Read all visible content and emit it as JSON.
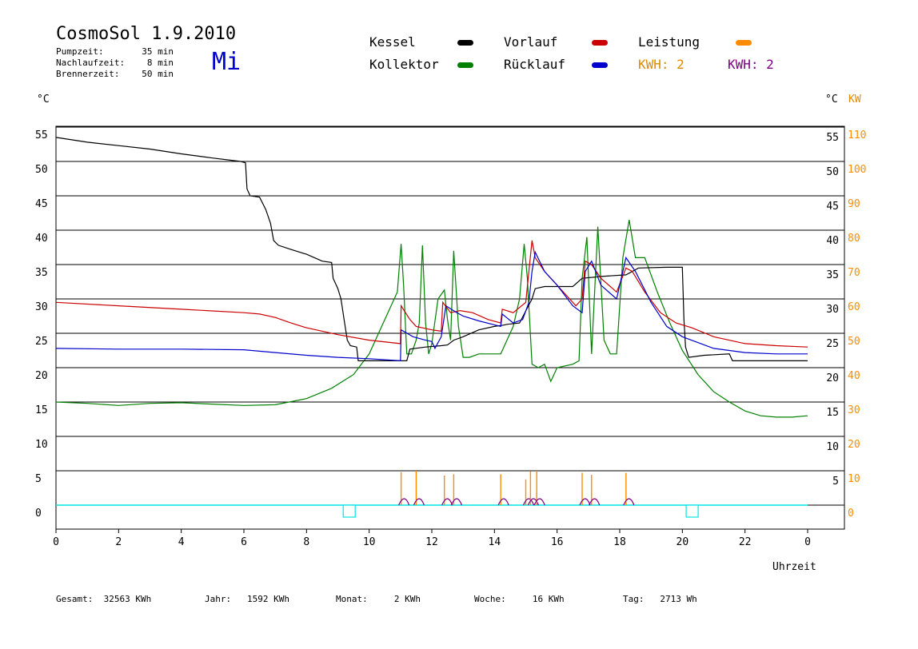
{
  "header": {
    "title": "CosmoSol 1.9.2010",
    "day": "Mi",
    "info": [
      {
        "label": "Pumpzeit:",
        "value": "35 min"
      },
      {
        "label": "Nachlaufzeit:",
        "value": "8 min"
      },
      {
        "label": "Brennerzeit:",
        "value": "50 min"
      }
    ]
  },
  "legend": {
    "kessel": "Kessel",
    "kollektor": "Kollektor",
    "vorlauf": "Vorlauf",
    "ruecklauf": "Rücklauf",
    "leistung": "Leistung",
    "kwh1": "KWH: 2",
    "kwh2": "KWH: 2"
  },
  "colors": {
    "kessel": "#000000",
    "kollektor": "#008000",
    "vorlauf": "#cc0000",
    "ruecklauf": "#0000cc",
    "leistung": "#ff8c00",
    "kwh1": "#e08a00",
    "kwh2": "#800080",
    "baseline": "#00e5e5"
  },
  "footer": [
    {
      "label": "Gesamt:",
      "value": "32563 KWh"
    },
    {
      "label": "Jahr:",
      "value": "1592 KWh"
    },
    {
      "label": "Monat:",
      "value": "2 KWh"
    },
    {
      "label": "Woche:",
      "value": "16 KWh"
    },
    {
      "label": "Tag:",
      "value": "2713 Wh"
    }
  ],
  "chart_data": {
    "type": "line",
    "left_unit": "°C",
    "right_unit": "°C",
    "right_unit2": "KW",
    "xlabel": "Uhrzeit",
    "xlim": [
      0,
      24
    ],
    "ylim": [
      -2.5,
      55
    ],
    "grid": true,
    "x_ticks": [
      "0",
      "2",
      "4",
      "6",
      "8",
      "10",
      "12",
      "14",
      "16",
      "18",
      "20",
      "22",
      "0"
    ],
    "y_ticks": [
      0,
      5,
      10,
      15,
      20,
      25,
      30,
      35,
      40,
      45,
      50,
      55
    ],
    "y_ticks_right": [
      "",
      "5",
      "10",
      "15",
      "20",
      "25",
      "30",
      "35",
      "40",
      "45",
      "50",
      "55"
    ],
    "kw_ticks": [
      "0",
      "10",
      "20",
      "30",
      "40",
      "50",
      "60",
      "70",
      "80",
      "90",
      "100",
      "110"
    ],
    "series": [
      {
        "name": "Kessel",
        "color": "#000000",
        "points": [
          [
            0,
            53.5
          ],
          [
            1,
            52.8
          ],
          [
            2,
            52.3
          ],
          [
            3,
            51.8
          ],
          [
            4,
            51.1
          ],
          [
            5,
            50.5
          ],
          [
            5.9,
            50
          ],
          [
            6.05,
            49.8
          ],
          [
            6.1,
            46
          ],
          [
            6.2,
            45
          ],
          [
            6.5,
            44.8
          ],
          [
            6.7,
            43
          ],
          [
            6.85,
            41
          ],
          [
            6.95,
            38.5
          ],
          [
            7.1,
            37.8
          ],
          [
            7.5,
            37.2
          ],
          [
            8,
            36.5
          ],
          [
            8.5,
            35.5
          ],
          [
            8.8,
            35.3
          ],
          [
            8.85,
            33
          ],
          [
            9,
            31.5
          ],
          [
            9.1,
            30
          ],
          [
            9.2,
            27
          ],
          [
            9.3,
            24
          ],
          [
            9.4,
            23.2
          ],
          [
            9.6,
            23
          ],
          [
            9.65,
            21
          ],
          [
            10,
            21
          ],
          [
            10.5,
            21
          ],
          [
            11.2,
            21
          ],
          [
            11.3,
            22.7
          ],
          [
            11.8,
            23
          ],
          [
            12.3,
            23.2
          ],
          [
            12.5,
            23.3
          ],
          [
            12.7,
            24
          ],
          [
            13,
            24.5
          ],
          [
            13.5,
            25.5
          ],
          [
            14,
            26
          ],
          [
            14.3,
            26.2
          ],
          [
            14.4,
            26.3
          ],
          [
            14.8,
            26.5
          ],
          [
            15.2,
            30
          ],
          [
            15.3,
            31.5
          ],
          [
            15.6,
            31.8
          ],
          [
            16.5,
            31.8
          ],
          [
            16.8,
            33
          ],
          [
            17.5,
            33.3
          ],
          [
            18.2,
            33.5
          ],
          [
            18.6,
            34.5
          ],
          [
            19.5,
            34.6
          ],
          [
            20,
            34.6
          ],
          [
            20.05,
            27
          ],
          [
            20.1,
            23
          ],
          [
            20.2,
            21.5
          ],
          [
            20.7,
            21.8
          ],
          [
            21.5,
            22
          ],
          [
            21.6,
            21
          ],
          [
            22,
            21
          ],
          [
            24,
            21
          ]
        ]
      },
      {
        "name": "Vorlauf",
        "color": "#cc0000",
        "points": [
          [
            0,
            29.5
          ],
          [
            2,
            29
          ],
          [
            4,
            28.5
          ],
          [
            6,
            28
          ],
          [
            6.5,
            27.8
          ],
          [
            7,
            27.3
          ],
          [
            7.5,
            26.5
          ],
          [
            8,
            25.8
          ],
          [
            9,
            24.8
          ],
          [
            10,
            24
          ],
          [
            11,
            23.5
          ],
          [
            11.02,
            29
          ],
          [
            11.3,
            27
          ],
          [
            11.5,
            26
          ],
          [
            12,
            25.5
          ],
          [
            12.3,
            25.3
          ],
          [
            12.35,
            29.5
          ],
          [
            12.6,
            28
          ],
          [
            12.9,
            28.3
          ],
          [
            13.3,
            28
          ],
          [
            13.8,
            27
          ],
          [
            14.2,
            26.5
          ],
          [
            14.25,
            28.5
          ],
          [
            14.6,
            28
          ],
          [
            15,
            29.5
          ],
          [
            15.1,
            34
          ],
          [
            15.2,
            38.5
          ],
          [
            15.3,
            36
          ],
          [
            15.6,
            34
          ],
          [
            16.2,
            31
          ],
          [
            16.6,
            29
          ],
          [
            16.8,
            30
          ],
          [
            16.9,
            35.5
          ],
          [
            17.1,
            35
          ],
          [
            17.4,
            33
          ],
          [
            17.9,
            31
          ],
          [
            18.2,
            34.5
          ],
          [
            18.4,
            34
          ],
          [
            18.8,
            31
          ],
          [
            19.3,
            28
          ],
          [
            19.8,
            26.5
          ],
          [
            20.3,
            25.8
          ],
          [
            21,
            24.5
          ],
          [
            22,
            23.5
          ],
          [
            23,
            23.2
          ],
          [
            24,
            23
          ]
        ]
      },
      {
        "name": "Rücklauf",
        "color": "#0000cc",
        "points": [
          [
            0,
            22.8
          ],
          [
            2,
            22.7
          ],
          [
            4,
            22.7
          ],
          [
            6,
            22.6
          ],
          [
            7,
            22.2
          ],
          [
            8,
            21.8
          ],
          [
            9,
            21.5
          ],
          [
            10,
            21.3
          ],
          [
            11,
            21
          ],
          [
            11.02,
            25.5
          ],
          [
            11.4,
            24.5
          ],
          [
            11.8,
            24
          ],
          [
            12,
            23.8
          ],
          [
            12.1,
            22.8
          ],
          [
            12.3,
            24.5
          ],
          [
            12.45,
            29
          ],
          [
            12.8,
            28
          ],
          [
            13,
            27.5
          ],
          [
            13.5,
            26.8
          ],
          [
            14.2,
            26
          ],
          [
            14.25,
            27.8
          ],
          [
            14.6,
            26.5
          ],
          [
            14.9,
            27
          ],
          [
            15.1,
            29.5
          ],
          [
            15.2,
            34
          ],
          [
            15.3,
            36.8
          ],
          [
            15.6,
            34
          ],
          [
            16,
            32
          ],
          [
            16.5,
            29
          ],
          [
            16.8,
            28
          ],
          [
            16.9,
            34
          ],
          [
            17.1,
            35.5
          ],
          [
            17.4,
            32
          ],
          [
            17.9,
            30
          ],
          [
            18.2,
            36
          ],
          [
            18.5,
            34
          ],
          [
            19,
            29.5
          ],
          [
            19.5,
            26
          ],
          [
            20,
            24.5
          ],
          [
            21,
            22.8
          ],
          [
            22,
            22.2
          ],
          [
            23,
            22
          ],
          [
            24,
            22
          ]
        ]
      },
      {
        "name": "Kollektor",
        "color": "#008000",
        "points": [
          [
            0,
            15
          ],
          [
            1,
            14.8
          ],
          [
            2,
            14.5
          ],
          [
            3,
            14.8
          ],
          [
            4,
            14.9
          ],
          [
            5,
            14.7
          ],
          [
            6,
            14.5
          ],
          [
            7,
            14.6
          ],
          [
            8,
            15.5
          ],
          [
            8.8,
            17
          ],
          [
            9.5,
            19
          ],
          [
            10,
            22
          ],
          [
            10.4,
            26
          ],
          [
            10.9,
            31
          ],
          [
            11.02,
            38
          ],
          [
            11.1,
            32
          ],
          [
            11.2,
            22
          ],
          [
            11.35,
            22
          ],
          [
            11.5,
            24
          ],
          [
            11.6,
            26.5
          ],
          [
            11.7,
            37.8
          ],
          [
            11.8,
            26.5
          ],
          [
            11.9,
            22
          ],
          [
            12,
            23.5
          ],
          [
            12.2,
            30
          ],
          [
            12.4,
            31.3
          ],
          [
            12.5,
            27
          ],
          [
            12.6,
            24
          ],
          [
            12.7,
            37
          ],
          [
            12.85,
            26
          ],
          [
            13,
            21.5
          ],
          [
            13.2,
            21.5
          ],
          [
            13.5,
            22
          ],
          [
            14.2,
            22
          ],
          [
            14.6,
            26
          ],
          [
            14.8,
            30
          ],
          [
            14.95,
            38
          ],
          [
            15.05,
            33
          ],
          [
            15.2,
            20.5
          ],
          [
            15.4,
            20
          ],
          [
            15.6,
            20.5
          ],
          [
            15.8,
            18
          ],
          [
            16,
            20
          ],
          [
            16.5,
            20.5
          ],
          [
            16.7,
            21
          ],
          [
            16.8,
            33
          ],
          [
            16.95,
            39
          ],
          [
            17.1,
            22
          ],
          [
            17.3,
            40.5
          ],
          [
            17.5,
            24
          ],
          [
            17.7,
            22
          ],
          [
            17.9,
            22
          ],
          [
            18.1,
            36
          ],
          [
            18.3,
            41.5
          ],
          [
            18.5,
            36
          ],
          [
            18.8,
            36
          ],
          [
            19.2,
            31
          ],
          [
            19.6,
            26.5
          ],
          [
            20,
            22.5
          ],
          [
            20.5,
            19
          ],
          [
            21,
            16.5
          ],
          [
            21.5,
            15
          ],
          [
            22,
            13.7
          ],
          [
            22.5,
            13
          ],
          [
            23,
            12.8
          ],
          [
            23.5,
            12.8
          ],
          [
            24,
            13
          ]
        ]
      }
    ],
    "leistung_spikes": [
      {
        "x": 11.02,
        "kw": 9.6
      },
      {
        "x": 11.5,
        "kw": 10
      },
      {
        "x": 12.4,
        "kw": 8.6
      },
      {
        "x": 12.7,
        "kw": 9
      },
      {
        "x": 14.2,
        "kw": 9
      },
      {
        "x": 15.0,
        "kw": 7.5
      },
      {
        "x": 15.15,
        "kw": 9.8
      },
      {
        "x": 15.35,
        "kw": 10
      },
      {
        "x": 16.8,
        "kw": 9.4
      },
      {
        "x": 17.1,
        "kw": 8.8
      },
      {
        "x": 18.2,
        "kw": 9.4
      }
    ],
    "markers": [
      {
        "x": 9.35
      },
      {
        "x": 20.3
      }
    ]
  }
}
